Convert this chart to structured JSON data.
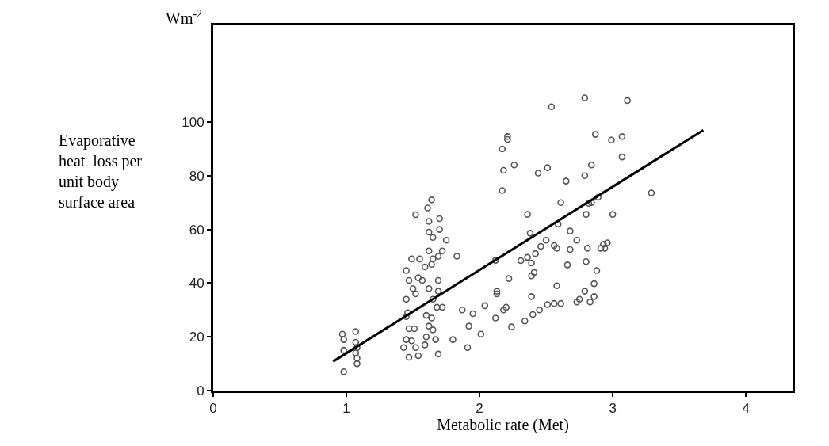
{
  "chart_data": {
    "type": "scatter",
    "xlabel": "Metabolic rate (Met)",
    "ylabel": "Evaporative heat  loss per unit body surface area",
    "annotations": [
      "Wm$^{-2}$"
    ],
    "xlim": [
      0,
      4.35
    ],
    "xticks": [
      0,
      1,
      2,
      3,
      4
    ],
    "ylim": [
      0,
      136
    ],
    "yticks": [
      0,
      20,
      40,
      60,
      80,
      100
    ],
    "marker": "circle",
    "series": [
      {
        "color": "#555555",
        "x": [
          0.97,
          0.98,
          0.98,
          0.98,
          1.07,
          1.07,
          1.08,
          1.07,
          1.08,
          1.08,
          1.52,
          1.45,
          1.47,
          1.45,
          1.46,
          1.45,
          1.49,
          1.55,
          1.54,
          1.57,
          1.5,
          1.52,
          1.47,
          1.51,
          1.45,
          1.49,
          1.52,
          1.43,
          1.47,
          1.54,
          1.59,
          1.6,
          1.6,
          1.64,
          1.62,
          1.67,
          1.69,
          1.65,
          1.68,
          1.72,
          1.65,
          1.69,
          1.69,
          1.62,
          1.59,
          1.64,
          1.65,
          1.69,
          1.62,
          1.72,
          1.75,
          1.7,
          1.62,
          1.65,
          1.7,
          1.62,
          1.61,
          1.64,
          1.83,
          1.8,
          1.87,
          1.95,
          1.92,
          1.91,
          2.01,
          2.04,
          2.12,
          2.13,
          2.13,
          2.12,
          2.18,
          2.2,
          2.24,
          2.22,
          2.17,
          2.18,
          2.26,
          2.17,
          2.21,
          2.21,
          2.34,
          2.4,
          2.45,
          2.51,
          2.56,
          2.61,
          2.31,
          2.36,
          2.39,
          2.41,
          2.39,
          2.39,
          2.42,
          2.46,
          2.5,
          2.38,
          2.36,
          2.44,
          2.51,
          2.54,
          2.58,
          2.56,
          2.58,
          2.59,
          2.61,
          2.65,
          2.66,
          2.68,
          2.68,
          2.73,
          2.73,
          2.75,
          2.8,
          2.79,
          2.81,
          2.8,
          2.79,
          2.84,
          2.79,
          2.82,
          2.84,
          2.89,
          2.83,
          2.86,
          2.86,
          2.88,
          2.93,
          2.91,
          2.96,
          2.94,
          2.87,
          2.99,
          3.07,
          3.07,
          3.0,
          3.11,
          3.29
        ],
        "values": [
          21,
          19,
          15,
          7,
          22,
          18,
          16,
          14,
          12,
          10,
          65.5,
          44.7,
          41,
          34,
          29,
          27.5,
          49,
          49,
          42,
          41,
          38,
          36,
          23,
          23,
          19,
          18.5,
          16,
          16,
          12.4,
          13,
          17,
          20,
          28,
          27,
          24,
          19,
          13.6,
          22.6,
          31,
          31,
          34,
          37,
          41,
          38,
          46,
          47,
          49,
          50,
          52,
          52,
          56,
          60,
          59,
          57,
          64,
          63,
          68,
          71,
          50,
          19,
          30,
          28.6,
          24,
          16,
          21,
          31.6,
          27,
          37,
          36,
          48.5,
          30,
          31,
          23.7,
          41.7,
          74.5,
          82,
          84,
          90,
          94.6,
          93.5,
          25.9,
          28.3,
          30,
          32,
          32.4,
          32.4,
          48.4,
          49.6,
          47.5,
          44,
          42.7,
          35,
          51,
          53.7,
          56,
          58.6,
          65.6,
          81,
          83,
          105.7,
          39,
          54,
          53,
          62,
          70,
          78,
          46.8,
          59.4,
          52.5,
          56,
          33,
          34,
          48,
          37,
          53,
          65.6,
          80,
          84,
          109,
          69.7,
          70,
          72,
          33,
          35,
          39.8,
          44.7,
          54.5,
          53,
          55,
          53,
          95.4,
          93.3,
          94.6,
          87,
          65.6,
          108,
          73.6
        ]
      },
      {
        "type": "line",
        "color": "#000000",
        "marker": "none",
        "line_style": "solid",
        "x": [
          0.9,
          3.68
        ],
        "values": [
          10.8,
          97
        ]
      }
    ]
  }
}
